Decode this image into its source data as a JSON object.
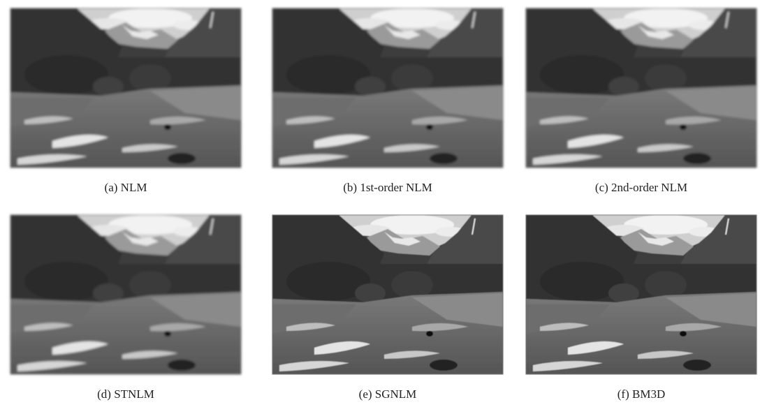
{
  "figure": {
    "panels": [
      {
        "caption": "(a) NLM"
      },
      {
        "caption": "(b) 1st-order NLM"
      },
      {
        "caption": "(c) 2nd-order NLM"
      },
      {
        "caption": "(d) STNLM"
      },
      {
        "caption": "(e) SGNLM"
      },
      {
        "caption": "(f) BM3D"
      }
    ]
  }
}
